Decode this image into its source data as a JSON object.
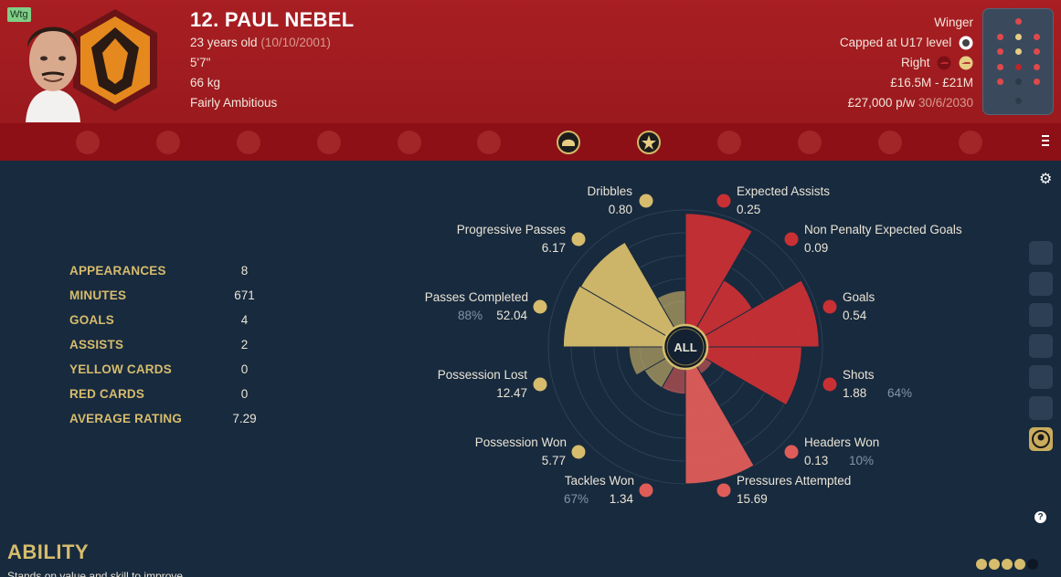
{
  "player": {
    "position_tag": "Wtg",
    "name": "12. PAUL NEBEL",
    "age": "23 years old",
    "dob": "(10/10/2001)",
    "height": "5'7\"",
    "weight": "66 kg",
    "personality": "Fairly Ambitious"
  },
  "profile": {
    "role": "Winger",
    "caps": "Capped at U17 level",
    "foot": "Right",
    "value": "£16.5M - £21M",
    "wage": "£27,000 p/w",
    "contract_end": "30/6/2030"
  },
  "colors": {
    "header": "#a81e22",
    "tabbar": "#8c1016",
    "background": "#182a3e",
    "gold": "#d6bc6c",
    "red_stat": "#c93034",
    "pale_red_stat": "#e05c58"
  },
  "stats": [
    {
      "label": "APPEARANCES",
      "value": "8"
    },
    {
      "label": "MINUTES",
      "value": "671"
    },
    {
      "label": "GOALS",
      "value": "4"
    },
    {
      "label": "ASSISTS",
      "value": "2"
    },
    {
      "label": "YELLOW CARDS",
      "value": "0"
    },
    {
      "label": "RED CARDS",
      "value": "0"
    },
    {
      "label": "AVERAGE RATING",
      "value": "7.29"
    }
  ],
  "radar": {
    "center_label": "ALL",
    "metrics": [
      {
        "label": "Dribbles",
        "value": "0.80",
        "pct": "",
        "group": "gold",
        "level": 0.3
      },
      {
        "label": "Expected Assists",
        "value": "0.25",
        "pct": "",
        "group": "red",
        "level": 0.97
      },
      {
        "label": "Non Penalty Expected Goals",
        "value": "0.09",
        "pct": "",
        "group": "red",
        "level": 0.48
      },
      {
        "label": "Goals",
        "value": "0.54",
        "pct": "",
        "group": "red",
        "level": 0.97
      },
      {
        "label": "Shots",
        "value": "1.88",
        "pct": "64%",
        "group": "red",
        "level": 0.82
      },
      {
        "label": "Headers Won",
        "value": "0.13",
        "pct": "10%",
        "group": "pale-red",
        "level": 0.08
      },
      {
        "label": "Pressures Attempted",
        "value": "15.69",
        "pct": "",
        "group": "pale-red",
        "level": 1.0
      },
      {
        "label": "Tackles Won",
        "value": "1.34",
        "pct": "67%",
        "group": "pale-red",
        "level": 0.22
      },
      {
        "label": "Possession Won",
        "value": "5.77",
        "pct": "",
        "group": "gold",
        "level": 0.22
      },
      {
        "label": "Possession Lost",
        "value": "12.47",
        "pct": "",
        "group": "gold",
        "level": 0.3
      },
      {
        "label": "Passes Completed",
        "value": "52.04",
        "pct": "88%",
        "group": "gold",
        "level": 0.87
      },
      {
        "label": "Progressive Passes",
        "value": "6.17",
        "pct": "",
        "group": "gold",
        "level": 0.86
      }
    ]
  },
  "ability": {
    "title": "ABILITY",
    "text": "Stands on value and skill to improve"
  },
  "icons": {
    "tabs": [
      "anchor-icon",
      "chest-icon",
      "eagle-icon",
      "hammer-sickle-icon",
      "eye-icon",
      "rocket-icon",
      "helmet-icon",
      "star-burst-icon",
      "boot-icon",
      "wave-icon",
      "target-icon",
      "wolf-icon"
    ],
    "side": [
      "dive-icon",
      "stand-icon",
      "slide-icon",
      "kick-icon",
      "run-icon",
      "shoot-icon",
      "player-profile-icon"
    ]
  }
}
